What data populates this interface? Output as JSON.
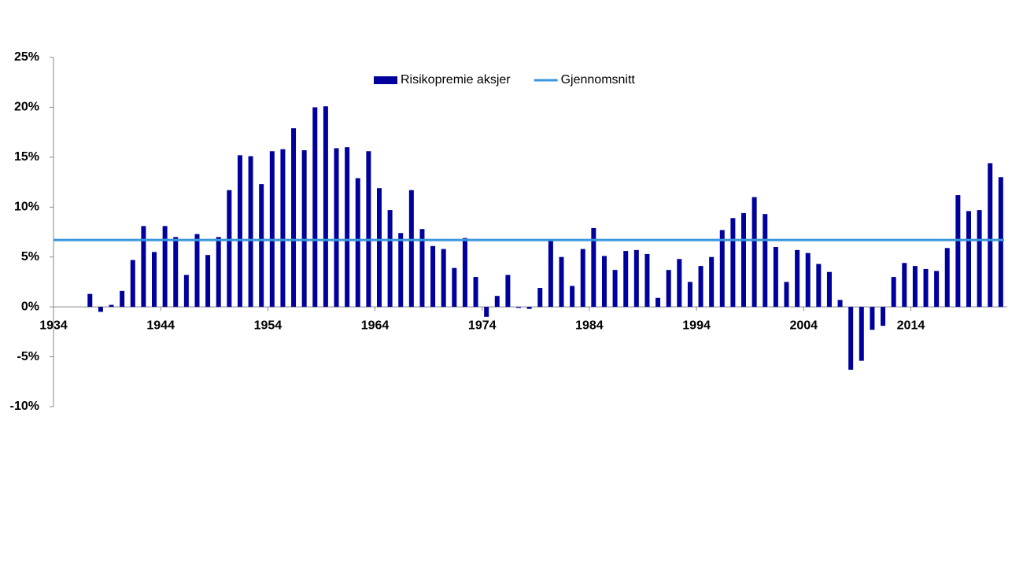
{
  "chart_data": {
    "type": "bar",
    "x": [
      1937,
      1938,
      1939,
      1940,
      1941,
      1942,
      1943,
      1944,
      1945,
      1946,
      1947,
      1948,
      1949,
      1950,
      1951,
      1952,
      1953,
      1954,
      1955,
      1956,
      1957,
      1958,
      1959,
      1960,
      1961,
      1962,
      1963,
      1964,
      1965,
      1966,
      1967,
      1968,
      1969,
      1970,
      1971,
      1972,
      1973,
      1974,
      1975,
      1976,
      1977,
      1978,
      1979,
      1980,
      1981,
      1982,
      1983,
      1984,
      1985,
      1986,
      1987,
      1988,
      1989,
      1990,
      1991,
      1992,
      1993,
      1994,
      1995,
      1996,
      1997,
      1998,
      1999,
      2000,
      2001,
      2002,
      2003,
      2004,
      2005,
      2006,
      2007,
      2008,
      2009,
      2010,
      2011,
      2012,
      2013,
      2014,
      2015,
      2016,
      2017,
      2018,
      2019,
      2020,
      2021,
      2022
    ],
    "series": [
      {
        "name": "Risikopremie aksjer",
        "color": "#00009c",
        "values": [
          1.3,
          -0.5,
          0.2,
          1.6,
          4.7,
          8.1,
          5.5,
          8.1,
          7.0,
          3.2,
          7.3,
          5.2,
          7.0,
          11.7,
          15.2,
          15.1,
          12.3,
          15.6,
          15.8,
          17.9,
          15.7,
          20.0,
          20.1,
          15.9,
          16.0,
          12.9,
          15.6,
          11.9,
          9.7,
          7.4,
          11.7,
          7.8,
          6.1,
          5.8,
          3.9,
          6.9,
          3.0,
          -1.0,
          1.1,
          3.2,
          -0.1,
          -0.2,
          1.9,
          6.6,
          5.0,
          2.1,
          5.8,
          7.9,
          5.1,
          3.7,
          5.6,
          5.7,
          5.3,
          0.9,
          3.7,
          4.8,
          2.5,
          4.1,
          5.0,
          7.7,
          8.9,
          9.4,
          11.0,
          9.3,
          6.0,
          2.5,
          5.7,
          5.4,
          4.3,
          3.5,
          0.7,
          -6.3,
          -5.4,
          -2.3,
          -1.9,
          3.0,
          4.4,
          4.1,
          3.8,
          3.6,
          5.9,
          11.2,
          9.6,
          9.7,
          14.4,
          13.0
        ]
      },
      {
        "name": "Gjennomsnitt",
        "type": "line",
        "color": "#3a96dd",
        "value": 6.7
      }
    ],
    "xlim": [
      1934,
      2023
    ],
    "xticks": [
      1934,
      1944,
      1954,
      1964,
      1974,
      1984,
      1994,
      2004,
      2014
    ],
    "ylim": [
      -10,
      25
    ],
    "yticks": [
      {
        "value": -10,
        "label": "-10%"
      },
      {
        "value": -5,
        "label": "-5%"
      },
      {
        "value": 0,
        "label": "0%"
      },
      {
        "value": 5,
        "label": "5%"
      },
      {
        "value": 10,
        "label": "10%"
      },
      {
        "value": 15,
        "label": "15%"
      },
      {
        "value": 20,
        "label": "20%"
      },
      {
        "value": 25,
        "label": "25%"
      }
    ],
    "grid": false,
    "legend": "top"
  }
}
